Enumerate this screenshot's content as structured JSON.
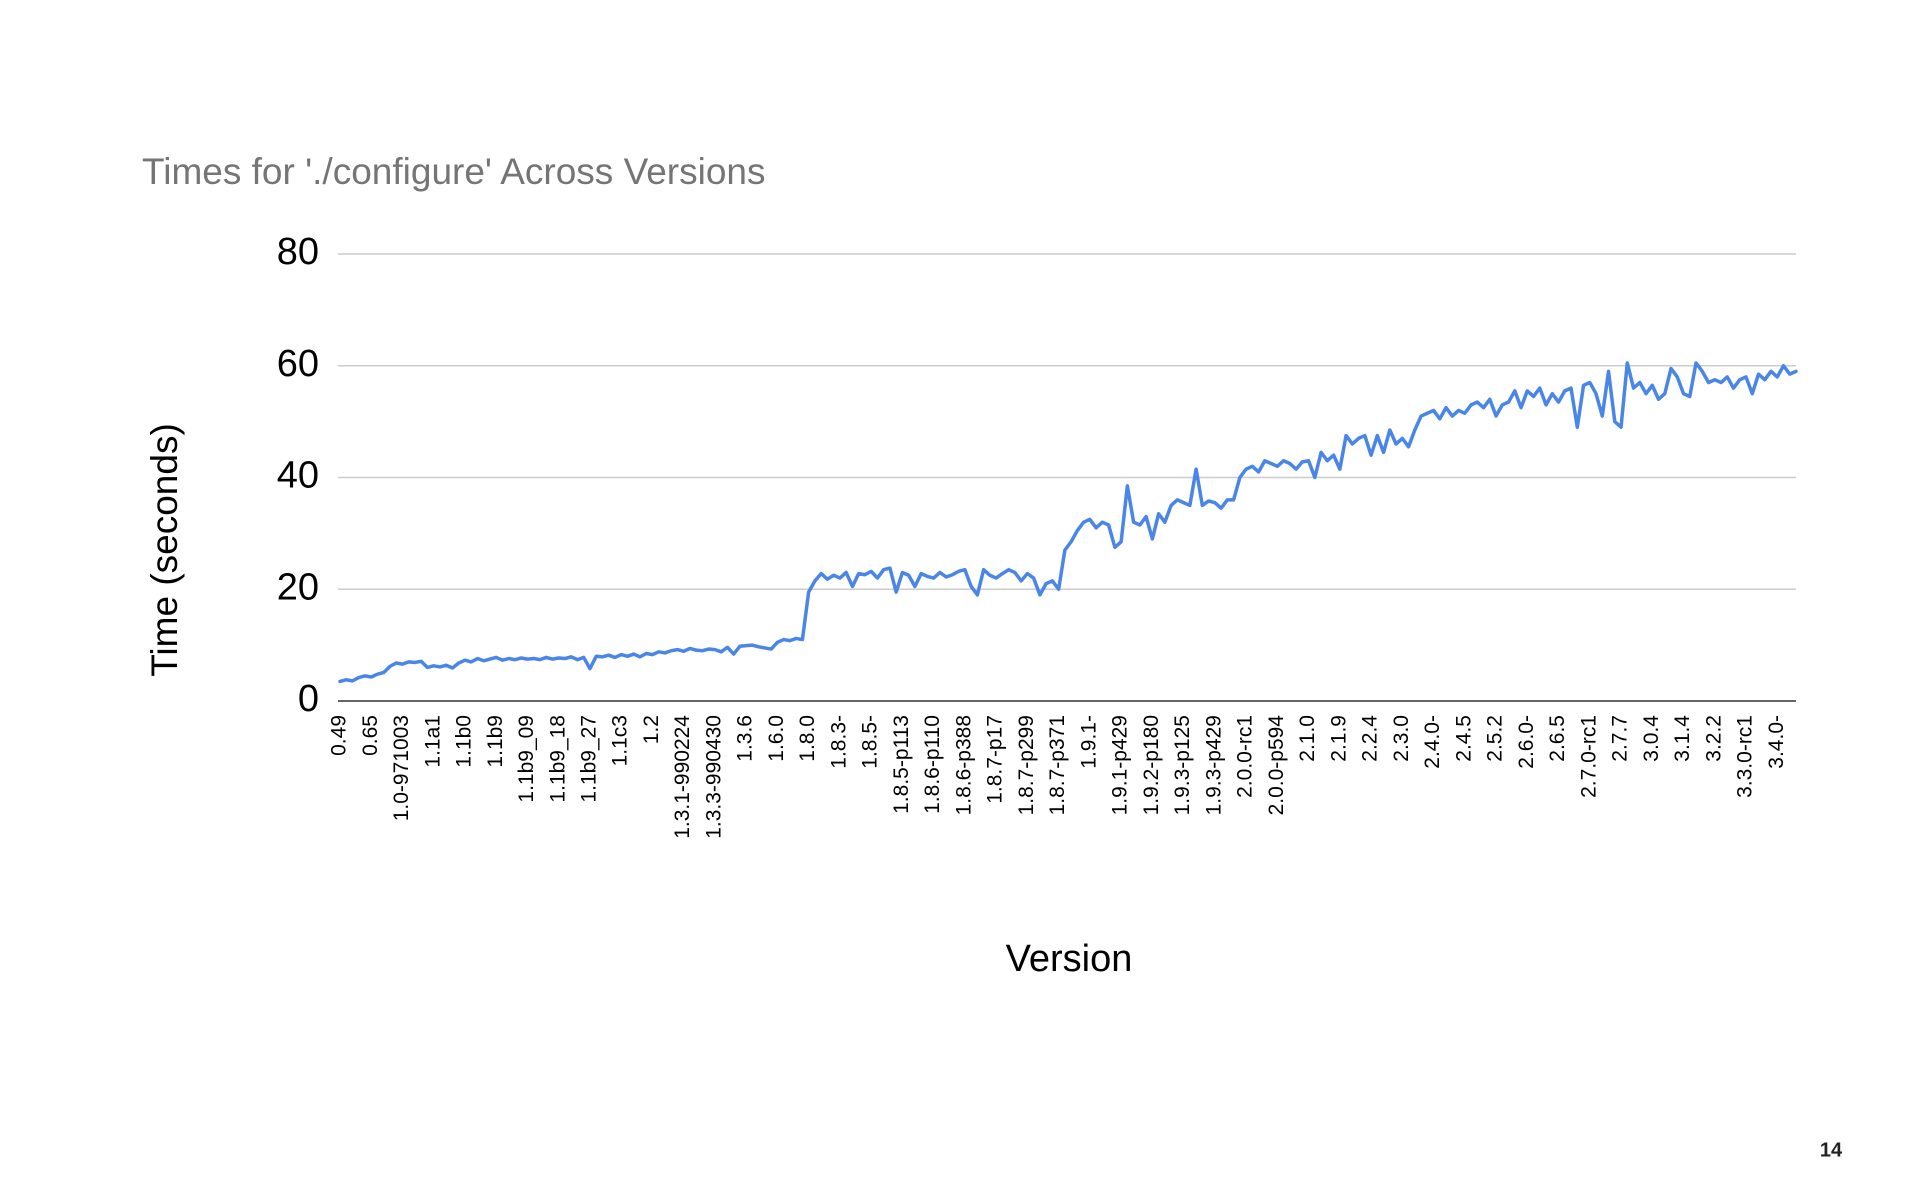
{
  "chart_data": {
    "type": "line",
    "title": "Times for './configure' Across Versions",
    "x_label": "Version",
    "y_label": "Time (seconds)",
    "color": "#4a86e8",
    "ylim": [
      0,
      80
    ],
    "yticks": [
      0,
      20,
      40,
      60,
      80
    ],
    "grid": true,
    "categories": [
      "0.49",
      null,
      null,
      null,
      null,
      "0.65",
      null,
      null,
      null,
      null,
      "1.0-971003",
      null,
      null,
      null,
      null,
      "1.1a1",
      null,
      null,
      null,
      null,
      "1.1b0",
      null,
      null,
      null,
      null,
      "1.1b9",
      null,
      null,
      null,
      null,
      "1.1b9_09",
      null,
      null,
      null,
      null,
      "1.1b9_18",
      null,
      null,
      null,
      null,
      "1.1b9_27",
      null,
      null,
      null,
      null,
      "1.1c3",
      null,
      null,
      null,
      null,
      "1.2",
      null,
      null,
      null,
      null,
      "1.3.1-990224",
      null,
      null,
      null,
      null,
      "1.3.3-990430",
      null,
      null,
      null,
      null,
      "1.3.6",
      null,
      null,
      null,
      null,
      "1.6.0",
      null,
      null,
      null,
      null,
      "1.8.0",
      null,
      null,
      null,
      null,
      "1.8.3-",
      null,
      null,
      null,
      null,
      "1.8.5-",
      null,
      null,
      null,
      null,
      "1.8.5-p113",
      null,
      null,
      null,
      null,
      "1.8.6-p110",
      null,
      null,
      null,
      null,
      "1.8.6-p388",
      null,
      null,
      null,
      null,
      "1.8.7-p17",
      null,
      null,
      null,
      null,
      "1.8.7-p299",
      null,
      null,
      null,
      null,
      "1.8.7-p371",
      null,
      null,
      null,
      null,
      "1.9.1-",
      null,
      null,
      null,
      null,
      "1.9.1-p429",
      null,
      null,
      null,
      null,
      "1.9.2-p180",
      null,
      null,
      null,
      null,
      "1.9.3-p125",
      null,
      null,
      null,
      null,
      "1.9.3-p429",
      null,
      null,
      null,
      null,
      "2.0.0-rc1",
      null,
      null,
      null,
      null,
      "2.0.0-p594",
      null,
      null,
      null,
      null,
      "2.1.0",
      null,
      null,
      null,
      null,
      "2.1.9",
      null,
      null,
      null,
      null,
      "2.2.4",
      null,
      null,
      null,
      null,
      "2.3.0",
      null,
      null,
      null,
      null,
      "2.4.0-",
      null,
      null,
      null,
      null,
      "2.4.5",
      null,
      null,
      null,
      null,
      "2.5.2",
      null,
      null,
      null,
      null,
      "2.6.0-",
      null,
      null,
      null,
      null,
      "2.6.5",
      null,
      null,
      null,
      null,
      "2.7.0-rc1",
      null,
      null,
      null,
      null,
      "2.7.7",
      null,
      null,
      null,
      null,
      "3.0.4",
      null,
      null,
      null,
      null,
      "3.1.4",
      null,
      null,
      null,
      null,
      "3.2.2",
      null,
      null,
      null,
      null,
      "3.3.0-rc1",
      null,
      null,
      null,
      null,
      "3.4.0-",
      null,
      null,
      null
    ],
    "values": [
      3.5,
      3.8,
      3.6,
      4.2,
      4.5,
      4.3,
      4.8,
      5.1,
      6.2,
      6.8,
      6.6,
      7.0,
      6.9,
      7.1,
      6.0,
      6.3,
      6.1,
      6.4,
      5.9,
      6.8,
      7.3,
      7.0,
      7.6,
      7.2,
      7.5,
      7.8,
      7.3,
      7.6,
      7.4,
      7.7,
      7.5,
      7.6,
      7.4,
      7.8,
      7.5,
      7.7,
      7.6,
      7.9,
      7.4,
      7.8,
      5.8,
      8.0,
      7.9,
      8.2,
      7.8,
      8.3,
      8.0,
      8.4,
      7.9,
      8.5,
      8.3,
      8.8,
      8.6,
      9.0,
      9.2,
      8.9,
      9.4,
      9.1,
      9.0,
      9.3,
      9.2,
      8.8,
      9.6,
      8.4,
      9.8,
      9.9,
      10.0,
      9.7,
      9.5,
      9.3,
      10.5,
      11.0,
      10.8,
      11.2,
      11.0,
      19.5,
      21.5,
      22.8,
      21.8,
      22.5,
      22.0,
      23.0,
      20.5,
      22.8,
      22.6,
      23.2,
      22.0,
      23.5,
      23.8,
      19.5,
      23.0,
      22.5,
      20.5,
      22.8,
      22.3,
      22.0,
      23.0,
      22.2,
      22.6,
      23.2,
      23.5,
      20.5,
      19.0,
      23.5,
      22.5,
      22.0,
      22.8,
      23.5,
      23.0,
      21.5,
      22.8,
      22.0,
      19.0,
      21.0,
      21.5,
      20.0,
      27.0,
      28.5,
      30.5,
      32.0,
      32.5,
      31.0,
      32.0,
      31.5,
      27.5,
      28.5,
      38.5,
      32.0,
      31.5,
      33.0,
      29.0,
      33.5,
      32.0,
      35.0,
      36.0,
      35.5,
      35.0,
      41.5,
      35.0,
      35.8,
      35.5,
      34.5,
      36.0,
      36.0,
      40.0,
      41.5,
      42.0,
      41.0,
      43.0,
      42.5,
      42.0,
      43.0,
      42.5,
      41.5,
      42.8,
      43.0,
      40.0,
      44.5,
      43.0,
      44.0,
      41.5,
      47.5,
      46.0,
      47.0,
      47.5,
      44.0,
      47.5,
      44.5,
      48.5,
      46.0,
      47.0,
      45.5,
      48.5,
      51.0,
      51.5,
      52.0,
      50.5,
      52.5,
      51.0,
      52.0,
      51.5,
      53.0,
      53.5,
      52.5,
      54.0,
      51.0,
      53.0,
      53.5,
      55.5,
      52.5,
      55.5,
      54.5,
      56.0,
      53.0,
      55.0,
      53.5,
      55.5,
      56.0,
      49.0,
      56.5,
      57.0,
      55.0,
      51.0,
      59.0,
      50.0,
      49.0,
      60.5,
      56.0,
      57.0,
      55.0,
      56.5,
      54.0,
      55.0,
      59.5,
      58.0,
      55.0,
      54.5,
      60.5,
      59.0,
      57.0,
      57.5,
      57.0,
      58.0,
      56.0,
      57.5,
      58.0,
      55.0,
      58.5,
      57.5,
      59.0,
      58.0,
      60.0,
      58.5,
      59.0
    ]
  },
  "page_number": "14"
}
